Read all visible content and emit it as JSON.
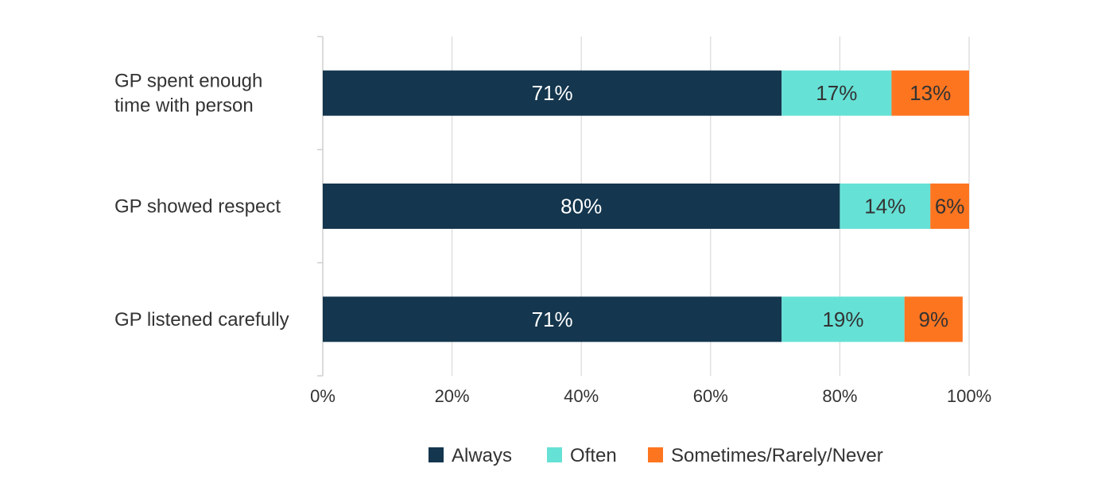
{
  "chart_data": {
    "type": "bar",
    "orientation": "horizontal",
    "stacked": true,
    "categories": [
      [
        "GP spent enough",
        "time with person"
      ],
      [
        "GP showed respect"
      ],
      [
        "GP listened carefully"
      ]
    ],
    "series": [
      {
        "name": "Always",
        "color": "#14364e",
        "values": [
          71,
          80,
          71
        ],
        "labels": [
          "71%",
          "80%",
          "71%"
        ],
        "label_color": "#ffffff"
      },
      {
        "name": "Often",
        "color": "#66e1d6",
        "values": [
          17,
          14,
          19
        ],
        "labels": [
          "17%",
          "14%",
          "19%"
        ],
        "label_color": "#333333"
      },
      {
        "name": "Sometimes/Rarely/Never",
        "color": "#fe7520",
        "values": [
          13,
          6,
          9
        ],
        "labels": [
          "13%",
          "6%",
          "9%"
        ],
        "label_color": "#333333"
      }
    ],
    "xlim": [
      0,
      100
    ],
    "xticks": [
      0,
      20,
      40,
      60,
      80,
      100
    ],
    "xtick_labels": [
      "0%",
      "20%",
      "40%",
      "60%",
      "80%",
      "100%"
    ],
    "grid": "vertical",
    "legend": "bottom",
    "title": "",
    "xlabel": "",
    "ylabel": ""
  }
}
